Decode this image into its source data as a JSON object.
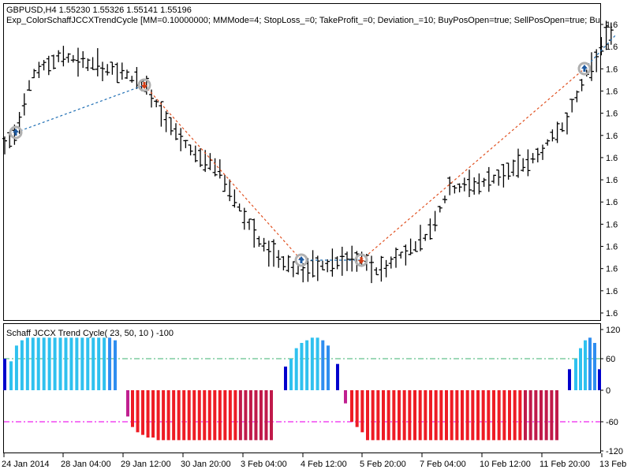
{
  "header": {
    "symbol_line": "GBPUSD,H4  1.55230 1.55326 1.55141 1.55196",
    "expert_line": "Exp_ColorSchaffJCCXTrendCycle [MM=0.10000000; MMMode=4; StopLoss_=0; TakeProfit_=0; Deviation_=10; BuyPosOpen=true; SellPosOpen=true; Bu"
  },
  "indicator": {
    "label": "Schaff JCCX Trend Cycle( 23, 50, 10 ) -100",
    "levels": [
      120,
      60,
      0,
      -60,
      -120
    ],
    "level_labels": [
      "120",
      "60",
      "0",
      "-60",
      "-120"
    ],
    "colors": {
      "bull_strong": "#2fc1ef",
      "bull_mid": "#2f8ef0",
      "bull_dark": "#0000cc",
      "bear_strong": "#ee1c24",
      "bear_mid": "#c01a4a",
      "bear_dark": "#c02090",
      "level_up": "#3cb371",
      "level_down": "#ee22ee"
    }
  },
  "price_axis_labels": [
    "1.6",
    "1.6",
    "1.6",
    "1.6",
    "1.6",
    "1.6",
    "1.6",
    "1.6",
    "1.6",
    "1.6",
    "1.6",
    "1.6",
    "1.6",
    "1.6"
  ],
  "time_axis_labels": [
    "24 Jan 2014",
    "28 Jan 04:00",
    "29 Jan 12:00",
    "30 Jan 20:00",
    "3 Feb 04:00",
    "4 Feb 12:00",
    "5 Feb 20:00",
    "7 Feb 04:00",
    "10 Feb 12:00",
    "11 Feb 20:00",
    "13 Feb"
  ],
  "colors": {
    "buy_arrow": "#1e5aa0",
    "sell_arrow": "#d23c14",
    "buy_line": "#1e6eb4",
    "sell_line": "#e05020",
    "marker_ring": "#b0b0b0"
  }
}
